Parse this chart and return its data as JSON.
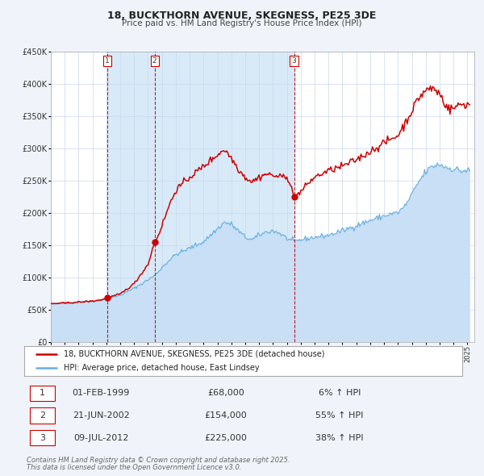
{
  "title": "18, BUCKTHORN AVENUE, SKEGNESS, PE25 3DE",
  "subtitle": "Price paid vs. HM Land Registry's House Price Index (HPI)",
  "hpi_line_color": "#6cb0e0",
  "hpi_fill_color": "#c8dff5",
  "price_color": "#cc0000",
  "background_color": "#f0f4fa",
  "plot_bg_color": "#ffffff",
  "grid_color": "#c8d8ee",
  "span_color": "#d8eaf8",
  "ylabel_values": [
    0,
    50000,
    100000,
    150000,
    200000,
    250000,
    300000,
    350000,
    400000,
    450000
  ],
  "ylabel_labels": [
    "£0",
    "£50K",
    "£100K",
    "£150K",
    "£200K",
    "£250K",
    "£300K",
    "£350K",
    "£400K",
    "£450K"
  ],
  "xmin": 1995.0,
  "xmax": 2025.5,
  "ymin": 0,
  "ymax": 450000,
  "legend_line1": "18, BUCKTHORN AVENUE, SKEGNESS, PE25 3DE (detached house)",
  "legend_line2": "HPI: Average price, detached house, East Lindsey",
  "transactions": [
    {
      "num": 1,
      "date": "01-FEB-1999",
      "price": 68000,
      "pct": "6%",
      "year": 1999.08
    },
    {
      "num": 2,
      "date": "21-JUN-2002",
      "price": 154000,
      "pct": "55%",
      "year": 2002.47
    },
    {
      "num": 3,
      "date": "09-JUL-2012",
      "price": 225000,
      "pct": "38%",
      "year": 2012.52
    }
  ],
  "footnote1": "Contains HM Land Registry data © Crown copyright and database right 2025.",
  "footnote2": "This data is licensed under the Open Government Licence v3.0."
}
